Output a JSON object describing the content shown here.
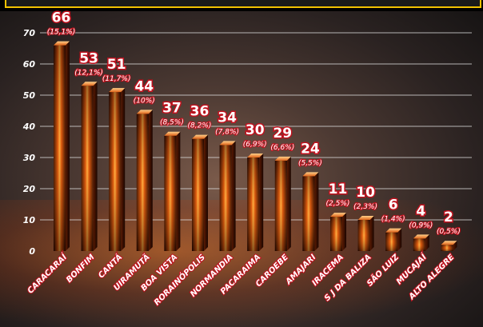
{
  "chart_data": {
    "type": "bar",
    "title": "",
    "xlabel": "",
    "ylabel": "",
    "ylim": [
      0,
      70
    ],
    "yticks": [
      0,
      10,
      20,
      30,
      40,
      50,
      60,
      70
    ],
    "grid": true,
    "categories": [
      "CARACARAÍ",
      "BONFIM",
      "CANTÁ",
      "UIRAMUTÃ",
      "BOA VISTA",
      "RORAINÓPOLIS",
      "NORMANDIA",
      "PACARAIMA",
      "CAROEBE",
      "AMAJARI",
      "IRACEMA",
      "S J DA BALIZA",
      "SÃO LUIZ",
      "MUCAJAÍ",
      "ALTO ALEGRE"
    ],
    "values": [
      66,
      53,
      51,
      44,
      37,
      36,
      34,
      30,
      29,
      24,
      11,
      10,
      6,
      4,
      2
    ],
    "percent_labels": [
      "(15,1%)",
      "(12,1%)",
      "(11,7%)",
      "(10%)",
      "(8,5%)",
      "(8,2%)",
      "(7,8%)",
      "(6,9%)",
      "(6,6%)",
      "(5,5%)",
      "(2,5%)",
      "(2,3%)",
      "(1,4%)",
      "(0,9%)",
      "(0,5%)"
    ],
    "colors": {
      "bar_top": "#ffb347",
      "bar_mid": "#e8590c",
      "bar_dark": "#3a0a00",
      "label": "#ffffff",
      "label_shadow": "#c0121e",
      "grid": "#d9d9d9",
      "accent_border": "#f2c200"
    }
  }
}
